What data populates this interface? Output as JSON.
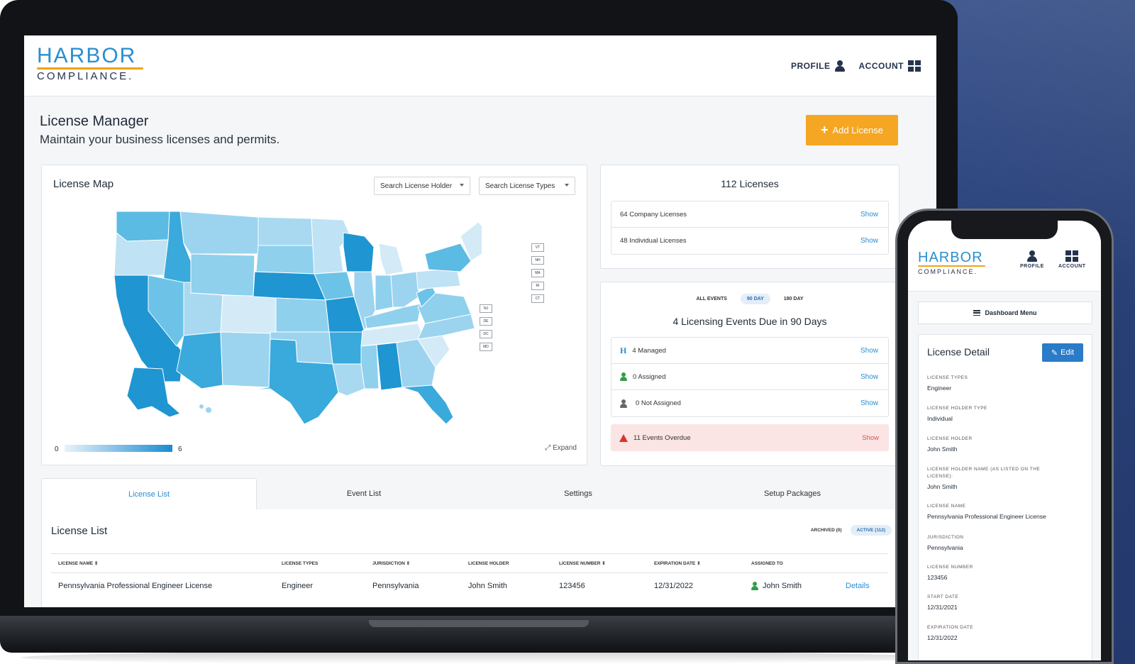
{
  "header": {
    "logo_top": "HARBOR",
    "logo_bottom": "COMPLIANCE.",
    "profile_label": "PROFILE",
    "account_label": "ACCOUNT"
  },
  "page": {
    "title": "License Manager",
    "subtitle": "Maintain your business licenses and permits.",
    "add_button": "Add License"
  },
  "map": {
    "title": "License Map",
    "holder_select": "Search License Holder",
    "types_select": "Search License Types",
    "legend_min": "0",
    "legend_max": "6",
    "expand_label": "Expand",
    "small_states": [
      "VT",
      "NH",
      "MA",
      "RI",
      "CT",
      "NJ",
      "DE",
      "DC",
      "MD"
    ]
  },
  "licenses": {
    "heading": "112 Licenses",
    "rows": [
      {
        "label": "64 Company Licenses",
        "action": "Show"
      },
      {
        "label": "48 Individual Licenses",
        "action": "Show"
      }
    ]
  },
  "events": {
    "tabs": [
      "ALL EVENTS",
      "90 DAY",
      "180 DAY"
    ],
    "active_tab": "90 DAY",
    "heading": "4 Licensing Events Due in 90 Days",
    "rows": [
      {
        "label": "4 Managed",
        "action": "Show",
        "icon": "harbor-h-icon"
      },
      {
        "label": "0 Assigned",
        "action": "Show",
        "icon": "person-icon"
      },
      {
        "label": "0 Not Assigned",
        "action": "Show",
        "icon": "person-unassigned-icon"
      }
    ],
    "overdue": {
      "label": "11 Events Overdue",
      "action": "Show"
    }
  },
  "tabs": [
    "License List",
    "Event List",
    "Settings",
    "Setup Packages"
  ],
  "list": {
    "title": "License List",
    "archived": "ARCHIVED (0)",
    "active": "ACTIVE (112)",
    "columns": [
      "LICENSE NAME ⇕",
      "LICENSE TYPES",
      "JURISDICTION ⇕",
      "LICENSE HOLDER",
      "LICENSE NUMBER ⇕",
      "EXPIRATION DATE ⇕",
      "ASSIGNED TO"
    ],
    "rows": [
      {
        "name": "Pennsylvania Professional Engineer License",
        "types": "Engineer",
        "jurisdiction": "Pennsylvania",
        "holder": "John Smith",
        "number": "123456",
        "expiration": "12/31/2022",
        "assigned": "John Smith",
        "action": "Details"
      }
    ]
  },
  "phone": {
    "logo_top": "HARBOR",
    "logo_bottom": "COMPLIANCE.",
    "profile_label": "PROFILE",
    "account_label": "ACCOUNT",
    "dashboard_menu": "Dashboard Menu",
    "detail_title": "License Detail",
    "edit_label": "Edit",
    "fields": [
      {
        "label": "LICENSE TYPES",
        "value": "Engineer"
      },
      {
        "label": "LICENSE HOLDER TYPE",
        "value": "Individual"
      },
      {
        "label": "LICENSE HOLDER",
        "value": "John Smith"
      },
      {
        "label": "LICENSE HOLDER NAME (AS LISTED ON THE LICENSE):",
        "value": "John Smith"
      },
      {
        "label": "LICENSE NAME",
        "value": "Pennsylvania Professional Engineer License"
      },
      {
        "label": "JURISDICTION",
        "value": "Pennsylvania"
      },
      {
        "label": "LICENSE NUMBER",
        "value": "123456"
      },
      {
        "label": "START DATE",
        "value": "12/31/2021"
      },
      {
        "label": "EXPIRATION DATE",
        "value": "12/31/2022"
      }
    ]
  },
  "colors": {
    "brand_blue": "#2a8ed0",
    "brand_orange": "#f5a623",
    "navy": "#26334d",
    "overdue_bg": "#fbe4e4"
  }
}
